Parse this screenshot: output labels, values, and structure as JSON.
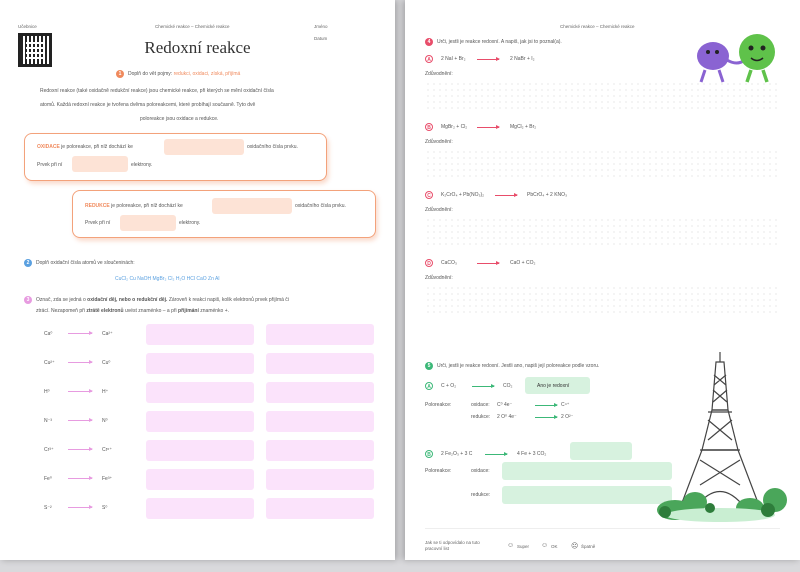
{
  "left": {
    "top_left": "Učebnice",
    "header": "Chemické reakce – Chemické reakce",
    "jmeno": "Jméno",
    "datum": "Datum",
    "title": "Redoxní reakce",
    "q1": {
      "num": "1",
      "prompt": "Doplň do vět pojmy:",
      "terms": "redukci, oxidaci, získá, přijímá",
      "p1": "Redoxní reakce (také oxidačně redukční reakce) jsou chemické reakce, při kterých se mění oxidační čísla",
      "p2": "atomů. Každá redoxní reakce je tvořena dvěma poloreakcemi, které probíhají současně. Tyto dvě",
      "p3": "poloreakce jsou oxidace a redukce.",
      "ox_word": "OXIDACE",
      "ox_line1": "je poloreakce, při níž dochází ke",
      "ox_line1b": "oxidačního čísla prvku.",
      "ox_line2": "Prvek při ní",
      "ox_line2b": "elektrony.",
      "red_word": "REDUKCE",
      "red_line1": "je poloreakce, při níž dochází ke",
      "red_line1b": "oxidačního čísla prvku.",
      "red_line2": "Prvek při ní",
      "red_line2b": "elektrony."
    },
    "q2": {
      "num": "2",
      "prompt": "Doplň oxidační čísla atomů ve sloučeninách:",
      "formulas": "CuCl₂  Cu  NaOH  MgBr₂  Cl₂  H₂O  HCl  CaO  Zn  Al"
    },
    "q3": {
      "num": "3",
      "line1a": "Označ, zda se jedná o",
      "line1b": "oxidační děj, nebo o redukční děj.",
      "line1c": "Zároveň k reakci napiš, kolik elektronů prvek přijímá či",
      "line2a": "ztrácí. Nezapomeň při",
      "line2b": "ztrátě elektronů",
      "line2c": "uvést znaménko – a při",
      "line2d": "přijímání",
      "line2e": "znaménko +.",
      "rows": [
        {
          "l": "Ca⁰",
          "r": "Ca²⁺"
        },
        {
          "l": "Cu²⁺",
          "r": "Cu⁰"
        },
        {
          "l": "H⁰",
          "r": "H⁺"
        },
        {
          "l": "N⁻³",
          "r": "N⁰"
        },
        {
          "l": "Cr³⁺",
          "r": "Cr⁶⁺"
        },
        {
          "l": "Fe⁰",
          "r": "Fe³⁺"
        },
        {
          "l": "S⁻²",
          "r": "S⁰"
        }
      ]
    }
  },
  "right": {
    "header": "Chemické reakce – Chemické reakce",
    "q4": {
      "num": "4",
      "prompt": "Urči, jestli je reakce redoxní. A napiš, jak jsi to poznal(a).",
      "items": [
        {
          "letter": "A",
          "lhs": "2 NaI + Br₂",
          "rhs": "2 NaBr + I₂"
        },
        {
          "letter": "B",
          "lhs": "MgBr₂ + Cl₂",
          "rhs": "MgCl₂ + Br₂"
        },
        {
          "letter": "C",
          "lhs": "K₂CrO₄ + Pb(NO₃)₂",
          "rhs": "PbCrO₄ + 2 KNO₃"
        },
        {
          "letter": "D",
          "lhs": "CaCO₃",
          "rhs": "CaO + CO₂"
        }
      ],
      "reason": "Zdůvodnění:"
    },
    "q5": {
      "num": "5",
      "prompt": "Urči, jestli je reakce redoxní. Jestli ano, napiš její poloreakce podle vzoru.",
      "a_letter": "A",
      "a_lhs": "C + O₂",
      "a_rhs": "CO₂",
      "a_answer": "Ano je redoxní",
      "polo": "Poloreakce:",
      "ox": "oxidace:",
      "ox_l": "C⁰  4e⁻",
      "ox_r": "C⁴⁺",
      "red": "redukce:",
      "red_l": "2 O⁰  4e⁻",
      "red_r": "2 O²⁻",
      "b_letter": "B",
      "b_lhs": "2 Fe₂O₃ + 3 C",
      "b_rhs": "4 Fe  + 3 CO₂",
      "b_ox": "oxidace:",
      "b_red": "redukce:"
    },
    "footer": {
      "note": "Jak se ti odpovídalo na tuto pracovní list",
      "opt1": "Super",
      "opt2": "OK",
      "opt3": "Špatně"
    }
  }
}
